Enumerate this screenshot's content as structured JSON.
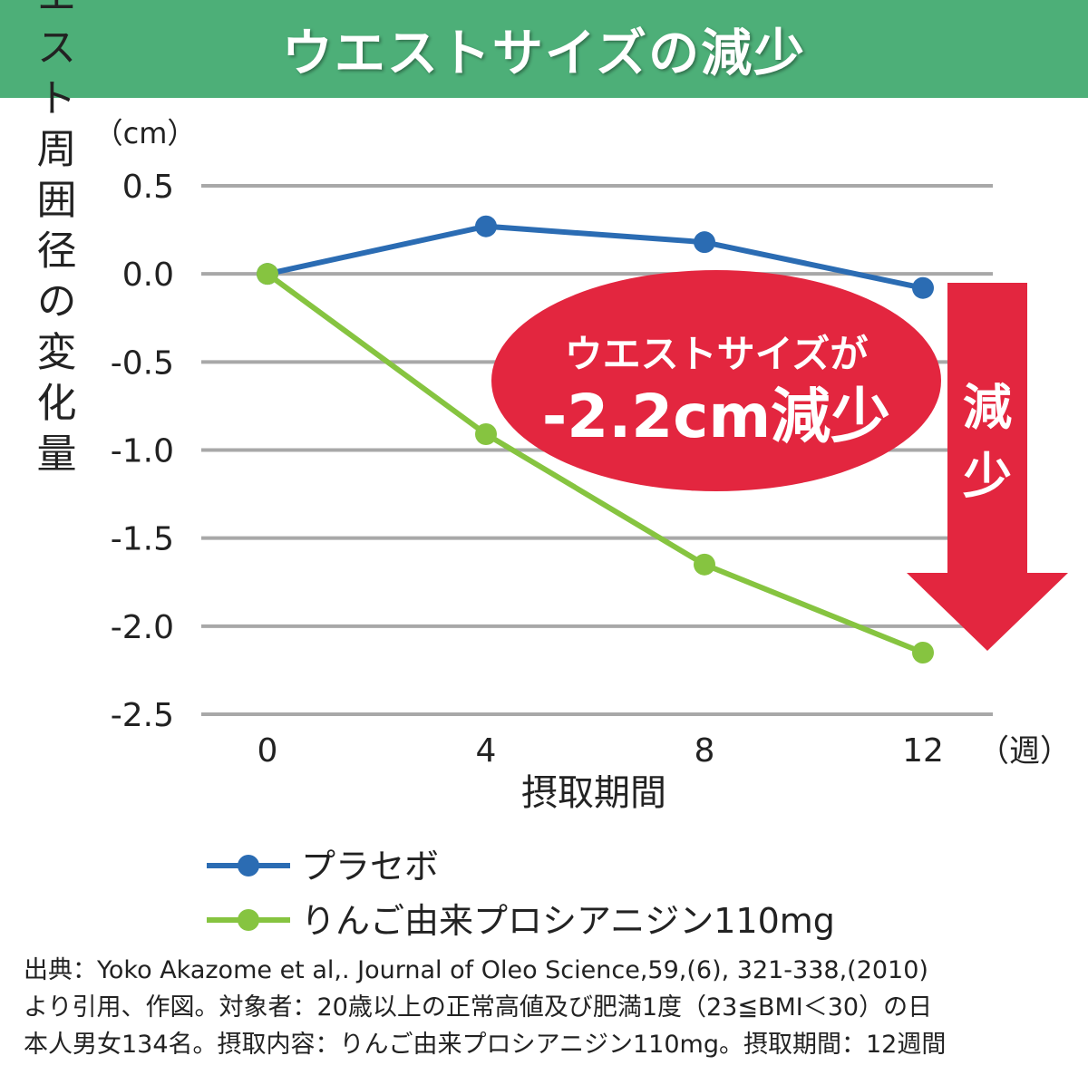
{
  "chart_data": {
    "type": "line",
    "title": "ウエストサイズの減少",
    "ylabel": "ウエスト周囲径の変化量",
    "yunit": "（cm）",
    "xlabel": "摂取期間",
    "xunit": "（週）",
    "x": [
      0,
      4,
      8,
      12
    ],
    "xticks": [
      "0",
      "4",
      "8",
      "12"
    ],
    "ylim": [
      -2.5,
      0.5
    ],
    "yticks": [
      "0.5",
      "0.0",
      "-0.5",
      "-1.0",
      "-1.5",
      "-2.0",
      "-2.5"
    ],
    "grid": true,
    "legend_position": "bottom-left",
    "series": [
      {
        "name": "プラセボ",
        "color": "#2b6cb3",
        "values": [
          0.0,
          0.27,
          0.18,
          -0.08
        ]
      },
      {
        "name": "りんご由来プロシアニジン110mg",
        "color": "#86c440",
        "values": [
          0.0,
          -0.91,
          -1.65,
          -2.15
        ]
      }
    ],
    "annotations": {
      "bubble_line1": "ウエストサイズが",
      "bubble_line2": "-2.2cm減少",
      "arrow_label": [
        "減",
        "少"
      ],
      "accent_color": "#e3263f"
    }
  },
  "citation": [
    "出典：Yoko Akazome et al,. Journal of Oleo Science,59,(6), 321-338,(2010)",
    "より引用、作図。対象者：20歳以上の正常高値及び肥満1度（23≦BMI＜30）の日",
    "本人男女134名。摂取内容：りんご由来プロシアニジン110mg。摂取期間：12週間"
  ]
}
